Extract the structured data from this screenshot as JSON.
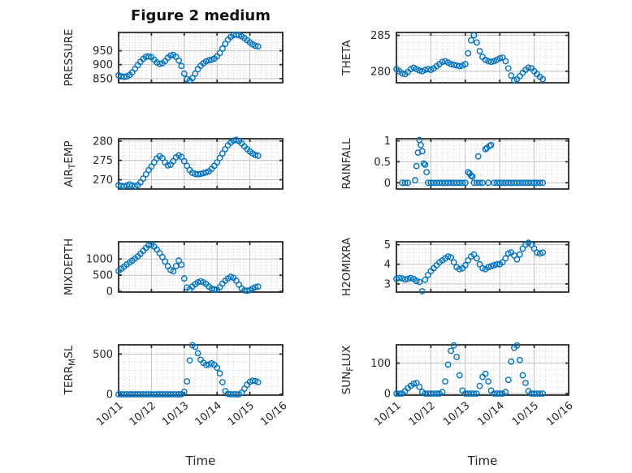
{
  "title": "Figure 2 medium",
  "colors": {
    "marker": "#0072BD",
    "axis": "#2b2b2b",
    "major_grid": "#c2c2c2",
    "minor_grid": "#cbcbcb",
    "text": "#262626"
  },
  "chart_data": {
    "type": "scatter",
    "marker": "open-circle",
    "grid": "major solid + minor dotted",
    "x_axis": {
      "label": "Time",
      "tick_labels": [
        "10/11",
        "10/12",
        "10/13",
        "10/14",
        "10/15",
        "10/16"
      ],
      "range_days": [
        0,
        5
      ],
      "tick_label_rotation_deg": -40
    },
    "x_hours": [
      0,
      2,
      4,
      6,
      8,
      10,
      12,
      14,
      16,
      18,
      20,
      22,
      24,
      26,
      28,
      30,
      32,
      34,
      36,
      38,
      40,
      42,
      44,
      46,
      48,
      50,
      52,
      54,
      56,
      58,
      60,
      62,
      64,
      66,
      68,
      70,
      72,
      74,
      76,
      78,
      80,
      82,
      84,
      86,
      88,
      90,
      92,
      94,
      96,
      98,
      100,
      102
    ],
    "charts": [
      {
        "name": "pressure",
        "row": 0,
        "col": 0,
        "ylabel_parts": [
          {
            "text": "PRESSURE"
          }
        ],
        "yticks": [
          850,
          900,
          950
        ],
        "ylim": [
          835,
          1016
        ],
        "values": [
          862,
          858,
          856,
          858,
          863,
          872,
          885,
          898,
          910,
          921,
          928,
          930,
          927,
          918,
          908,
          903,
          905,
          913,
          925,
          933,
          935,
          928,
          915,
          895,
          868,
          848,
          843,
          852,
          868,
          884,
          896,
          905,
          912,
          916,
          918,
          922,
          930,
          942,
          958,
          975,
          990,
          1000,
          1006,
          1008,
          1006,
          1002,
          996,
          988,
          980,
          973,
          968,
          966
        ]
      },
      {
        "name": "theta",
        "row": 0,
        "col": 1,
        "ylabel_parts": [
          {
            "text": "THETA"
          }
        ],
        "yticks": [
          280,
          285
        ],
        "ylim": [
          278.4,
          285.4
        ],
        "values": [
          280.3,
          280.0,
          279.7,
          279.6,
          279.9,
          280.3,
          280.5,
          280.3,
          280.1,
          280.0,
          280.2,
          280.3,
          280.2,
          280.4,
          280.7,
          281.0,
          281.3,
          281.4,
          281.2,
          281.0,
          280.9,
          280.8,
          280.7,
          280.8,
          281.0,
          282.5,
          284.3,
          285.0,
          284.0,
          282.8,
          282.0,
          281.6,
          281.4,
          281.3,
          281.4,
          281.6,
          281.8,
          281.9,
          281.4,
          280.4,
          279.4,
          278.7,
          278.9,
          279.3,
          279.8,
          280.2,
          280.5,
          280.4,
          280.0,
          279.6,
          279.2,
          278.9
        ]
      },
      {
        "name": "air-temp",
        "row": 1,
        "col": 0,
        "ylabel_parts": [
          {
            "text": "AIR"
          },
          {
            "sub": "T"
          },
          {
            "text": "EMP"
          }
        ],
        "yticks": [
          270,
          275,
          280
        ],
        "ylim": [
          267.6,
          280.6
        ],
        "values": [
          268.6,
          268.4,
          268.3,
          268.5,
          268.8,
          268.5,
          268.3,
          268.6,
          269.3,
          270.3,
          271.4,
          272.5,
          273.4,
          274.5,
          275.5,
          276.1,
          275.6,
          274.5,
          273.7,
          273.9,
          274.8,
          275.8,
          276.3,
          275.9,
          274.8,
          273.6,
          272.5,
          271.8,
          271.5,
          271.4,
          271.5,
          271.7,
          271.9,
          272.2,
          272.8,
          273.6,
          274.5,
          275.6,
          276.8,
          277.9,
          278.9,
          279.6,
          280.1,
          280.3,
          280.0,
          279.4,
          278.6,
          277.9,
          277.3,
          276.8,
          276.4,
          276.2
        ]
      },
      {
        "name": "rainfall",
        "row": 1,
        "col": 1,
        "ylabel_parts": [
          {
            "text": "RAINFALL"
          }
        ],
        "yticks": [
          0,
          0.5,
          1
        ],
        "ylim": [
          -0.15,
          1.05
        ],
        "x_hours": [
          4,
          6,
          8,
          13,
          14,
          15,
          16,
          17,
          18,
          19,
          20,
          21,
          22,
          24,
          26,
          28,
          30,
          32,
          34,
          36,
          38,
          40,
          42,
          44,
          46,
          48,
          50,
          51,
          52,
          53,
          54,
          56,
          57,
          58,
          60,
          62,
          63,
          64,
          65,
          66,
          68,
          70,
          72,
          74,
          76,
          78,
          80,
          82,
          84,
          86,
          88,
          90,
          92,
          94,
          96,
          98,
          100,
          102
        ],
        "values": [
          0,
          0,
          0,
          0.06,
          0.4,
          0.72,
          1.02,
          0.9,
          0.75,
          0.46,
          0.43,
          0.25,
          0,
          0,
          0,
          0,
          0,
          0,
          0,
          0,
          0,
          0,
          0,
          0,
          0,
          0,
          0.25,
          0.22,
          0.17,
          0.15,
          0,
          0,
          0.63,
          0,
          0,
          0.8,
          0.83,
          0,
          0.88,
          0.9,
          0,
          0,
          0,
          0,
          0,
          0,
          0,
          0,
          0,
          0,
          0,
          0,
          0,
          0,
          0,
          0,
          0,
          0
        ]
      },
      {
        "name": "mixdepth",
        "row": 2,
        "col": 0,
        "ylabel_parts": [
          {
            "text": "MIXDEPTH"
          }
        ],
        "yticks": [
          0,
          500,
          1000
        ],
        "ylim": [
          -20,
          1530
        ],
        "values": [
          630,
          700,
          760,
          830,
          890,
          950,
          1010,
          1080,
          1160,
          1250,
          1340,
          1420,
          1440,
          1380,
          1290,
          1180,
          1060,
          920,
          780,
          660,
          620,
          780,
          950,
          820,
          400,
          120,
          60,
          150,
          220,
          280,
          310,
          280,
          230,
          150,
          90,
          60,
          50,
          130,
          240,
          330,
          400,
          450,
          420,
          330,
          210,
          90,
          30,
          20,
          40,
          90,
          130,
          150
        ]
      },
      {
        "name": "h2omixra",
        "row": 2,
        "col": 1,
        "ylabel_parts": [
          {
            "text": "H2OMIXRA"
          }
        ],
        "yticks": [
          3,
          4,
          5
        ],
        "ylim": [
          2.58,
          5.15
        ],
        "values": [
          3.25,
          3.3,
          3.28,
          3.22,
          3.26,
          3.3,
          3.25,
          3.15,
          3.1,
          2.62,
          3.2,
          3.45,
          3.65,
          3.8,
          3.95,
          4.1,
          4.2,
          4.3,
          4.4,
          4.35,
          4.1,
          3.85,
          3.75,
          3.8,
          3.95,
          4.2,
          4.4,
          4.5,
          4.3,
          4.0,
          3.8,
          3.75,
          3.85,
          3.9,
          3.95,
          4.0,
          4.0,
          4.1,
          4.3,
          4.55,
          4.6,
          4.45,
          4.25,
          4.5,
          4.8,
          5.0,
          5.1,
          5.0,
          4.8,
          4.6,
          4.55,
          4.6
        ]
      },
      {
        "name": "terr-msl",
        "row": 3,
        "col": 0,
        "ylabel_parts": [
          {
            "text": "TERR"
          },
          {
            "sub": "M"
          },
          {
            "text": "SL"
          }
        ],
        "yticks": [
          0,
          500
        ],
        "ylim": [
          -10,
          615
        ],
        "values": [
          0,
          0,
          0,
          0,
          0,
          0,
          0,
          0,
          0,
          0,
          0,
          0,
          0,
          0,
          0,
          0,
          0,
          0,
          0,
          0,
          0,
          0,
          0,
          0,
          30,
          160,
          420,
          610,
          590,
          510,
          430,
          390,
          365,
          370,
          385,
          365,
          330,
          260,
          150,
          40,
          5,
          0,
          0,
          0,
          0,
          20,
          70,
          120,
          155,
          170,
          165,
          150
        ]
      },
      {
        "name": "sun-flux",
        "row": 3,
        "col": 1,
        "ylabel_parts": [
          {
            "text": "SUN"
          },
          {
            "sub": "F"
          },
          {
            "text": "LUX"
          }
        ],
        "yticks": [
          0,
          100
        ],
        "ylim": [
          -5,
          160
        ],
        "values": [
          0,
          0,
          0,
          8,
          18,
          26,
          32,
          35,
          22,
          5,
          0,
          0,
          0,
          0,
          0,
          0,
          5,
          40,
          95,
          140,
          158,
          120,
          60,
          10,
          0,
          0,
          0,
          0,
          0,
          25,
          55,
          65,
          40,
          10,
          0,
          0,
          0,
          0,
          5,
          45,
          105,
          150,
          158,
          110,
          60,
          35,
          8,
          0,
          0,
          0,
          0,
          0
        ]
      }
    ]
  }
}
